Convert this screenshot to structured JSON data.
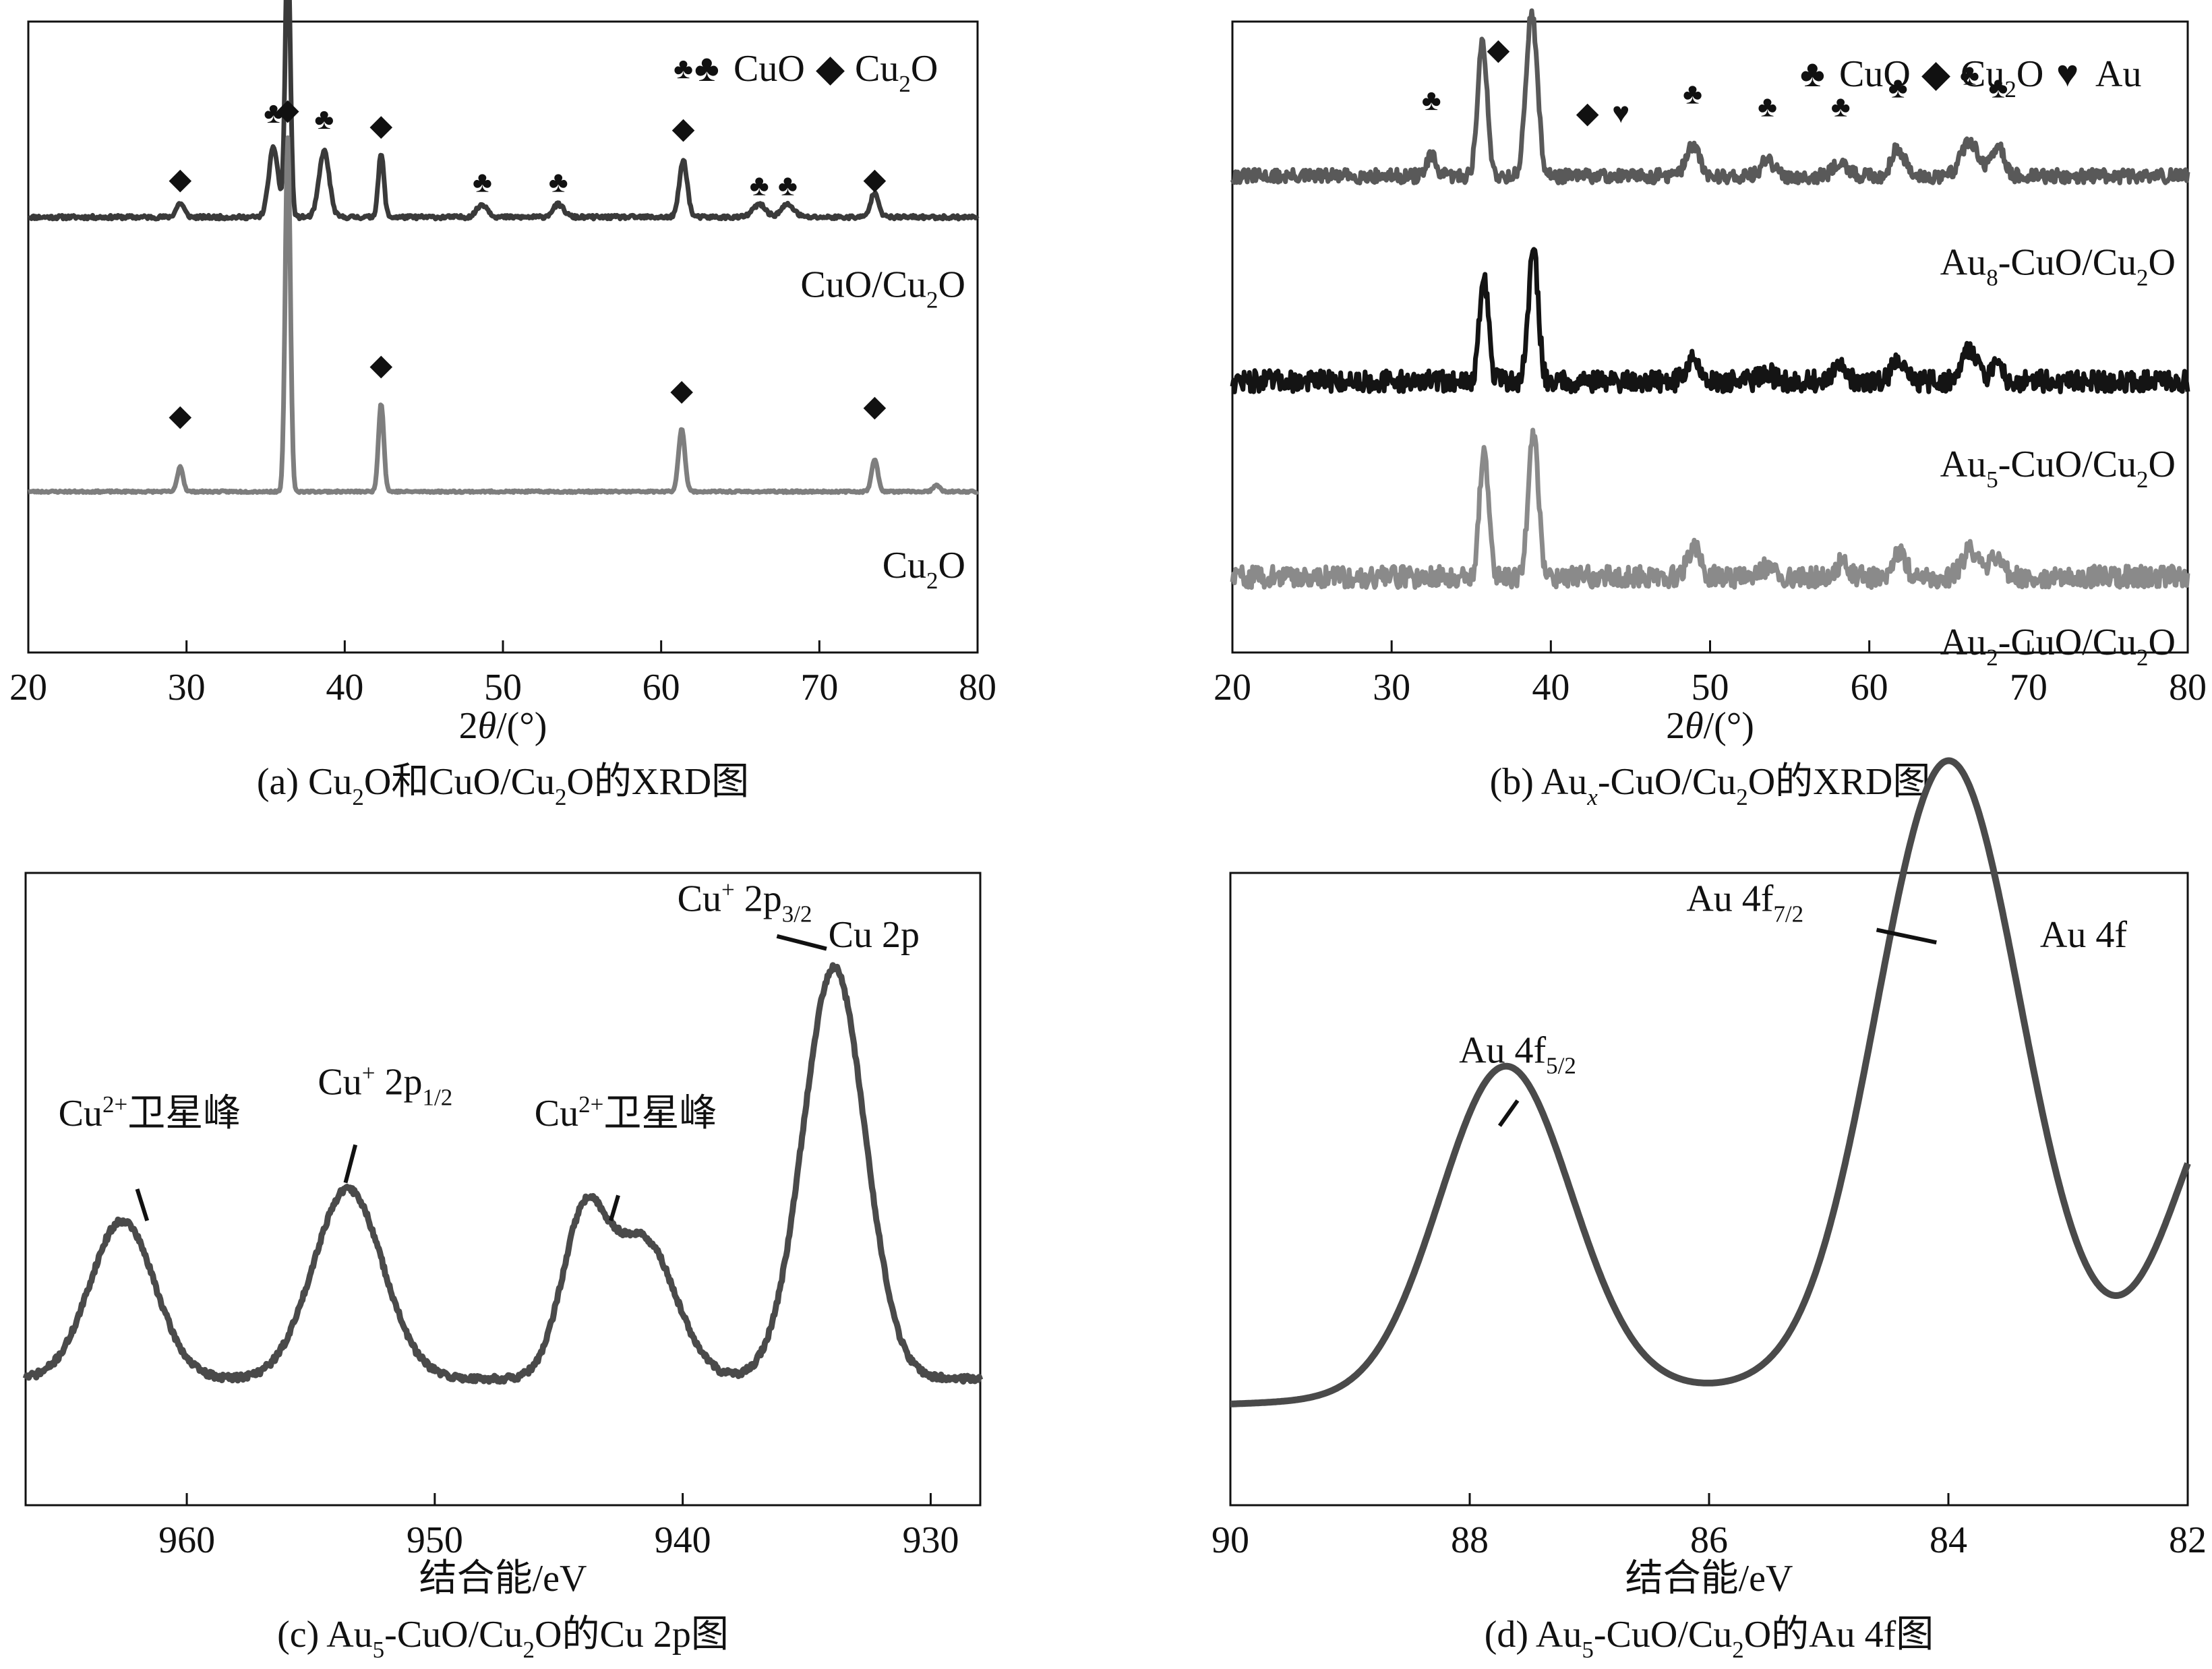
{
  "chart_data": [
    {
      "id": "a",
      "type": "line",
      "caption_parts": [
        [
          "(a) Cu",
          ""
        ],
        [
          "2",
          "sub"
        ],
        [
          "O和CuO/Cu",
          ""
        ],
        [
          "2",
          "sub"
        ],
        [
          "O的XRD图",
          ""
        ]
      ],
      "xlabel_parts": [
        [
          "2",
          ""
        ],
        [
          "θ",
          "i"
        ],
        [
          "/(°)",
          ""
        ]
      ],
      "xlim": [
        20,
        80
      ],
      "xticks": [
        20,
        30,
        40,
        50,
        60,
        70,
        80
      ],
      "legend": [
        {
          "symbol": "♣",
          "parts": [
            [
              "CuO",
              ""
            ]
          ]
        },
        {
          "symbol": "◆",
          "parts": [
            [
              "Cu",
              ""
            ],
            [
              "2",
              "sub"
            ],
            [
              "O",
              ""
            ]
          ]
        }
      ],
      "series": [
        {
          "name_parts": [
            [
              "CuO/Cu",
              ""
            ],
            [
              "2",
              "sub"
            ],
            [
              "O",
              ""
            ]
          ],
          "color": "#3a3a3a",
          "baseline": 0.69,
          "noise": 0.003,
          "seed": 11,
          "peaks": [
            [
              29.6,
              0.022,
              0.25
            ],
            [
              35.5,
              0.11,
              0.3
            ],
            [
              36.4,
              0.44,
              0.16
            ],
            [
              38.7,
              0.105,
              0.32
            ],
            [
              42.3,
              0.1,
              0.18
            ],
            [
              48.7,
              0.02,
              0.35
            ],
            [
              53.5,
              0.02,
              0.35
            ],
            [
              61.4,
              0.09,
              0.25
            ],
            [
              66.2,
              0.02,
              0.4
            ],
            [
              68.0,
              0.02,
              0.4
            ],
            [
              73.5,
              0.04,
              0.25
            ]
          ]
        },
        {
          "name_parts": [
            [
              "Cu",
              ""
            ],
            [
              "2",
              "sub"
            ],
            [
              "O",
              ""
            ]
          ],
          "color": "#7e7e7e",
          "baseline": 0.255,
          "noise": 0.0015,
          "seed": 23,
          "peaks": [
            [
              29.6,
              0.04,
              0.18
            ],
            [
              36.4,
              0.56,
              0.16
            ],
            [
              42.3,
              0.14,
              0.17
            ],
            [
              61.3,
              0.1,
              0.2
            ],
            [
              73.5,
              0.05,
              0.2
            ],
            [
              77.4,
              0.01,
              0.2
            ]
          ]
        }
      ],
      "markers": [
        {
          "x": 29.6,
          "y": 0.735,
          "s": "◆"
        },
        {
          "x": 35.5,
          "y": 0.84,
          "s": "♣"
        },
        {
          "x": 36.4,
          "y": 1.18,
          "s": "◆"
        },
        {
          "x": 38.7,
          "y": 0.83,
          "s": "♣"
        },
        {
          "x": 42.3,
          "y": 0.82,
          "s": "◆"
        },
        {
          "x": 48.7,
          "y": 0.73,
          "s": "♣"
        },
        {
          "x": 53.5,
          "y": 0.73,
          "s": "♣"
        },
        {
          "x": 61.4,
          "y": 0.91,
          "s": "♣"
        },
        {
          "x": 61.4,
          "y": 0.815,
          "s": "◆"
        },
        {
          "x": 66.2,
          "y": 0.725,
          "s": "♣"
        },
        {
          "x": 68.0,
          "y": 0.725,
          "s": "♣"
        },
        {
          "x": 73.5,
          "y": 0.735,
          "s": "◆"
        },
        {
          "x": 36.4,
          "y": 0.845,
          "s": "◆"
        },
        {
          "x": 29.6,
          "y": 0.36,
          "s": "◆"
        },
        {
          "x": 42.3,
          "y": 0.44,
          "s": "◆"
        },
        {
          "x": 61.3,
          "y": 0.4,
          "s": "◆"
        },
        {
          "x": 73.5,
          "y": 0.375,
          "s": "◆"
        }
      ]
    },
    {
      "id": "b",
      "type": "line",
      "caption_parts": [
        [
          "(b) Au",
          ""
        ],
        [
          "x",
          "subi"
        ],
        [
          "-CuO/Cu",
          ""
        ],
        [
          "2",
          "sub"
        ],
        [
          "O的XRD图",
          ""
        ]
      ],
      "xlabel_parts": [
        [
          "2",
          ""
        ],
        [
          "θ",
          "i"
        ],
        [
          "/(°)",
          ""
        ]
      ],
      "xlim": [
        20,
        80
      ],
      "xticks": [
        20,
        30,
        40,
        50,
        60,
        70,
        80
      ],
      "legend": [
        {
          "symbol": "♣",
          "parts": [
            [
              "CuO",
              ""
            ]
          ]
        },
        {
          "symbol": "◆",
          "parts": [
            [
              "Cu",
              ""
            ],
            [
              "2",
              "sub"
            ],
            [
              "O",
              ""
            ]
          ]
        },
        {
          "symbol": "♥",
          "parts": [
            [
              "Au",
              ""
            ]
          ]
        }
      ],
      "series": [
        {
          "name_parts": [
            [
              "Au",
              ""
            ],
            [
              "8",
              "sub"
            ],
            [
              "-CuO/Cu",
              ""
            ],
            [
              "2",
              "sub"
            ],
            [
              "O",
              ""
            ]
          ],
          "color": "#595959",
          "baseline": 0.755,
          "noise": 0.011,
          "seed": 31,
          "peaks": [
            [
              32.5,
              0.03,
              0.3
            ],
            [
              35.7,
              0.21,
              0.3
            ],
            [
              38.8,
              0.26,
              0.35
            ],
            [
              48.9,
              0.05,
              0.4
            ],
            [
              53.6,
              0.025,
              0.4
            ],
            [
              58.2,
              0.025,
              0.4
            ],
            [
              61.8,
              0.045,
              0.4
            ],
            [
              66.3,
              0.055,
              0.55
            ],
            [
              68.1,
              0.045,
              0.4
            ]
          ]
        },
        {
          "name_parts": [
            [
              "Au",
              ""
            ],
            [
              "5",
              "sub"
            ],
            [
              "-CuO/Cu",
              ""
            ],
            [
              "2",
              "sub"
            ],
            [
              "O",
              ""
            ]
          ],
          "color": "#141414",
          "baseline": 0.43,
          "noise": 0.017,
          "seed": 47,
          "peaks": [
            [
              35.8,
              0.165,
              0.28
            ],
            [
              38.9,
              0.21,
              0.3
            ],
            [
              48.9,
              0.035,
              0.4
            ],
            [
              53.5,
              0.015,
              0.4
            ],
            [
              58.2,
              0.02,
              0.4
            ],
            [
              61.8,
              0.04,
              0.35
            ],
            [
              66.3,
              0.05,
              0.5
            ],
            [
              68.0,
              0.02,
              0.4
            ]
          ]
        },
        {
          "name_parts": [
            [
              "Au",
              ""
            ],
            [
              "2",
              "sub"
            ],
            [
              "-CuO/Cu",
              ""
            ],
            [
              "2",
              "sub"
            ],
            [
              "O",
              ""
            ]
          ],
          "color": "#8a8a8a",
          "baseline": 0.12,
          "noise": 0.017,
          "seed": 59,
          "peaks": [
            [
              35.8,
              0.2,
              0.28
            ],
            [
              38.9,
              0.225,
              0.32
            ],
            [
              49.0,
              0.045,
              0.4
            ],
            [
              53.8,
              0.02,
              0.4
            ],
            [
              58.2,
              0.02,
              0.4
            ],
            [
              61.9,
              0.035,
              0.4
            ],
            [
              66.3,
              0.04,
              0.5
            ],
            [
              68.0,
              0.03,
              0.4
            ]
          ]
        }
      ],
      "markers": [
        {
          "x": 32.5,
          "y": 0.86,
          "s": "♣"
        },
        {
          "x": 35.7,
          "y": 1.07,
          "s": "♣"
        },
        {
          "x": 36.7,
          "y": 0.94,
          "s": "◆"
        },
        {
          "x": 38.8,
          "y": 1.12,
          "s": "♣"
        },
        {
          "x": 42.3,
          "y": 0.84,
          "s": "◆"
        },
        {
          "x": 44.4,
          "y": 0.84,
          "s": "♥"
        },
        {
          "x": 48.9,
          "y": 0.87,
          "s": "♣"
        },
        {
          "x": 53.6,
          "y": 0.85,
          "s": "♣"
        },
        {
          "x": 58.2,
          "y": 0.85,
          "s": "♣"
        },
        {
          "x": 61.8,
          "y": 0.88,
          "s": "♣"
        },
        {
          "x": 66.3,
          "y": 0.9,
          "s": "♣"
        },
        {
          "x": 68.1,
          "y": 0.88,
          "s": "♣"
        }
      ]
    },
    {
      "id": "c",
      "type": "line",
      "caption_parts": [
        [
          "(c) Au",
          ""
        ],
        [
          "5",
          "sub"
        ],
        [
          "-CuO/Cu",
          ""
        ],
        [
          "2",
          "sub"
        ],
        [
          "O的Cu 2p图",
          ""
        ]
      ],
      "xlabel_parts": [
        [
          "结合能/eV",
          ""
        ]
      ],
      "xlim": [
        966.5,
        928
      ],
      "xticks": [
        960,
        950,
        940,
        930
      ],
      "title_parts": [
        [
          "Cu 2p",
          ""
        ]
      ],
      "series": [
        {
          "color": "#4a4a4a",
          "baseline": 0.2,
          "noise": 0.005,
          "seed": 71,
          "peaks": [
            [
              962.6,
              0.25,
              1.3
            ],
            [
              953.5,
              0.3,
              1.4
            ],
            [
              944.0,
              0.24,
              0.9
            ],
            [
              941.6,
              0.22,
              1.3
            ],
            [
              933.9,
              0.65,
              1.25
            ]
          ]
        }
      ],
      "annotations": [
        {
          "parts": [
            [
              "Cu",
              ""
            ],
            [
              "2+",
              "sup"
            ],
            [
              "卫星峰",
              ""
            ]
          ],
          "tx": 961.5,
          "ty": 0.6,
          "line": [
            [
              962.0,
              0.5
            ],
            [
              961.6,
              0.45
            ]
          ]
        },
        {
          "parts": [
            [
              "Cu",
              ""
            ],
            [
              "+",
              "sup"
            ],
            [
              " 2p",
              ""
            ],
            [
              "1/2",
              "sub"
            ]
          ],
          "tx": 952.0,
          "ty": 0.65,
          "line": [
            [
              953.2,
              0.57
            ],
            [
              953.6,
              0.51
            ]
          ]
        },
        {
          "parts": [
            [
              "Cu",
              ""
            ],
            [
              "2+",
              "sup"
            ],
            [
              "卫星峰",
              ""
            ]
          ],
          "tx": 942.3,
          "ty": 0.6,
          "line": [
            [
              942.6,
              0.49
            ],
            [
              942.9,
              0.45
            ]
          ]
        },
        {
          "parts": [
            [
              "Cu",
              ""
            ],
            [
              "+",
              "sup"
            ],
            [
              " 2p",
              ""
            ],
            [
              "3/2",
              "sub"
            ]
          ],
          "tx": 937.5,
          "ty": 0.94,
          "line": [
            [
              936.2,
              0.9
            ],
            [
              934.2,
              0.88
            ]
          ]
        }
      ]
    },
    {
      "id": "d",
      "type": "line",
      "caption_parts": [
        [
          "(d) Au",
          ""
        ],
        [
          "5",
          "sub"
        ],
        [
          "-CuO/Cu",
          ""
        ],
        [
          "2",
          "sub"
        ],
        [
          "O的Au 4f图",
          ""
        ]
      ],
      "xlabel_parts": [
        [
          "结合能/eV",
          ""
        ]
      ],
      "xlim": [
        90,
        82
      ],
      "xticks": [
        90,
        88,
        86,
        84,
        82
      ],
      "title_parts": [
        [
          "Au 4f",
          ""
        ]
      ],
      "series": [
        {
          "color": "#4a4a4a",
          "baseline": 0.16,
          "noise": 0,
          "seed": 0,
          "peaks": [
            [
              87.7,
              0.52,
              0.55
            ],
            [
              84.0,
              0.98,
              0.6
            ],
            [
              81.6,
              0.45,
              0.5
            ]
          ],
          "tilt": 0.05
        }
      ],
      "annotations": [
        {
          "parts": [
            [
              "Au 4f",
              ""
            ],
            [
              "5/2",
              "sub"
            ]
          ],
          "tx": 87.6,
          "ty": 0.7,
          "line": [
            [
              87.6,
              0.64
            ],
            [
              87.75,
              0.6
            ]
          ]
        },
        {
          "parts": [
            [
              "Au 4f",
              ""
            ],
            [
              "7/2",
              "sub"
            ]
          ],
          "tx": 85.7,
          "ty": 0.94,
          "line": [
            [
              84.6,
              0.91
            ],
            [
              84.1,
              0.89
            ]
          ]
        }
      ]
    }
  ]
}
